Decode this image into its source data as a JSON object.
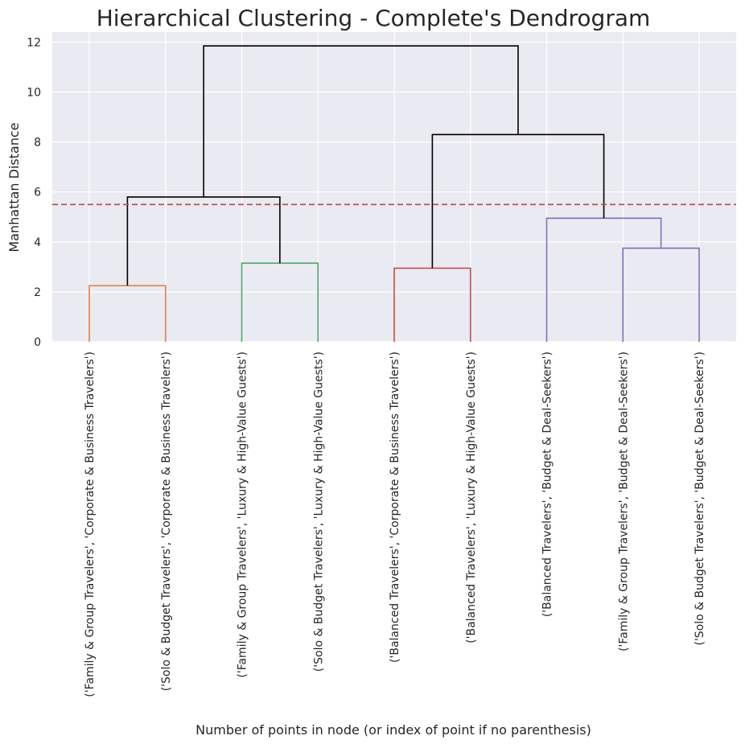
{
  "chart_data": {
    "type": "dendrogram",
    "title": "Hierarchical Clustering - Complete's Dendrogram",
    "xlabel": "Number of points in node (or index of point if no parenthesis)",
    "ylabel": "Manhattan Distance",
    "ylim": [
      0,
      12.4
    ],
    "yticks": [
      0,
      2,
      4,
      6,
      8,
      10,
      12
    ],
    "grid": true,
    "threshold": {
      "y": 5.5,
      "color": "#c44e52",
      "style": "dashed"
    },
    "leaves": [
      "('Family & Group Travelers', 'Corporate & Business Travelers')",
      "('Solo & Budget Travelers', 'Corporate & Business Travelers')",
      "('Family & Group Travelers', 'Luxury & High-Value Guests')",
      "('Solo & Budget Travelers', 'Luxury & High-Value Guests')",
      "('Balanced Travelers', 'Corporate & Business Travelers')",
      "('Balanced Travelers', 'Luxury & High-Value Guests')",
      "('Balanced Travelers', 'Budget & Deal-Seekers')",
      "('Family & Group Travelers', 'Budget & Deal-Seekers')",
      "('Solo & Budget Travelers', 'Budget & Deal-Seekers')"
    ],
    "links": [
      {
        "x": [
          0,
          0,
          1,
          1
        ],
        "y": [
          0,
          2.25,
          2.25,
          0
        ],
        "color": "#dd8452"
      },
      {
        "x": [
          2,
          2,
          3,
          3
        ],
        "y": [
          0,
          3.15,
          3.15,
          0
        ],
        "color": "#55a868"
      },
      {
        "x": [
          4,
          4,
          5,
          5
        ],
        "y": [
          0,
          2.95,
          2.95,
          0
        ],
        "color": "#c44e52"
      },
      {
        "x": [
          7,
          7,
          8,
          8
        ],
        "y": [
          0,
          3.75,
          3.75,
          0
        ],
        "color": "#8172b3"
      },
      {
        "x": [
          6,
          6,
          7.5,
          7.5
        ],
        "y": [
          0,
          4.95,
          4.95,
          3.75
        ],
        "color": "#8172b3"
      },
      {
        "x": [
          0.5,
          0.5,
          2.5,
          2.5
        ],
        "y": [
          2.25,
          5.8,
          5.8,
          3.15
        ],
        "color": "#000000"
      },
      {
        "x": [
          4.5,
          4.5,
          6.75,
          6.75
        ],
        "y": [
          2.95,
          8.3,
          8.3,
          4.95
        ],
        "color": "#000000"
      },
      {
        "x": [
          1.5,
          1.5,
          5.625,
          5.625
        ],
        "y": [
          5.8,
          11.85,
          11.85,
          8.3
        ],
        "color": "#000000"
      }
    ],
    "background": "#eaeaf2",
    "grid_color": "#ffffff"
  }
}
